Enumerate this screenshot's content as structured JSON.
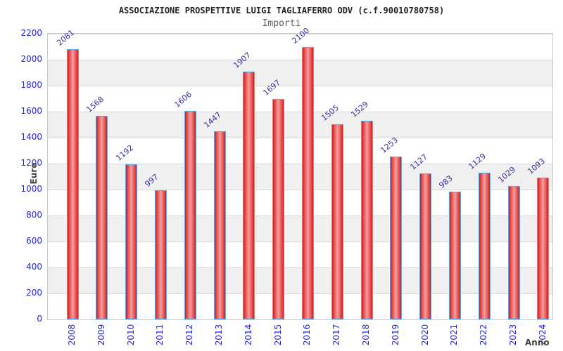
{
  "header": {
    "title": "ASSOCIAZIONE PROSPETTIVE LUIGI TAGLIAFERRO ODV (c.f.90010780758)",
    "subtitle": "Importi"
  },
  "chart_data": {
    "type": "bar",
    "title": "ASSOCIAZIONE PROSPETTIVE LUIGI TAGLIAFERRO ODV (c.f.90010780758)",
    "subtitle": "Importi",
    "categories": [
      "2008",
      "2009",
      "2010",
      "2011",
      "2012",
      "2013",
      "2014",
      "2015",
      "2016",
      "2017",
      "2018",
      "2019",
      "2020",
      "2021",
      "2022",
      "2023",
      "2024"
    ],
    "values": [
      2081,
      1568,
      1192,
      997,
      1606,
      1447,
      1907,
      1697,
      2100,
      1505,
      1529,
      1253,
      1127,
      983,
      1129,
      1029,
      1093
    ],
    "xlabel": "Anno",
    "ylabel": "Euro",
    "ylim": [
      0,
      2200
    ],
    "ytick_step": 200,
    "grid": true,
    "legend": false,
    "colors": {
      "bar_border": "#61a8e8",
      "bar_edge": "#c81f1f",
      "bar_mid": "#e83a3a",
      "bar_center": "#efa0a0",
      "tick_label": "#2424d6",
      "value_label": "#32329e",
      "axis_title": "#444444",
      "band_gray": "#f0f0f0",
      "band_white": "#ffffff",
      "gridline": "#d9d9d9",
      "plot_border": "#c8c8c8"
    }
  }
}
